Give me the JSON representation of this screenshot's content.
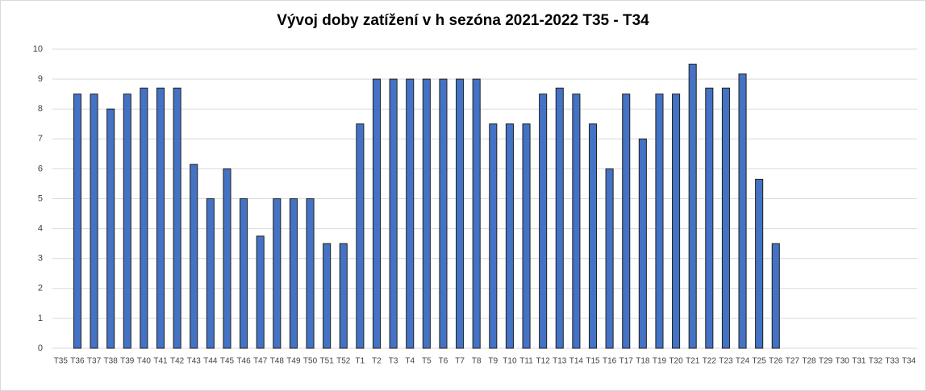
{
  "chart_data": {
    "type": "bar",
    "title": "Vývoj doby zatížení v h sezóna 2021-2022 T35 - T34",
    "categories": [
      "T35",
      "T36",
      "T37",
      "T38",
      "T39",
      "T40",
      "T41",
      "T42",
      "T43",
      "T44",
      "T45",
      "T46",
      "T47",
      "T48",
      "T49",
      "T50",
      "T51",
      "T52",
      "T1",
      "T2",
      "T3",
      "T4",
      "T5",
      "T6",
      "T7",
      "T8",
      "T9",
      "T10",
      "T11",
      "T12",
      "T13",
      "T14",
      "T15",
      "T16",
      "T17",
      "T18",
      "T19",
      "T20",
      "T21",
      "T22",
      "T23",
      "T24",
      "T25",
      "T26",
      "T27",
      "T28",
      "T29",
      "T30",
      "T31",
      "T32",
      "T33",
      "T34"
    ],
    "values": [
      null,
      8.5,
      8.5,
      8,
      8.5,
      8.7,
      8.7,
      8.7,
      6.15,
      5,
      6,
      5,
      3.75,
      5,
      5,
      5,
      3.5,
      3.5,
      7.5,
      9,
      9,
      9,
      9,
      9,
      9,
      9,
      7.5,
      7.5,
      7.5,
      8.5,
      8.7,
      8.5,
      7.5,
      6,
      8.5,
      7,
      8.5,
      8.5,
      9.5,
      8.7,
      8.7,
      9.17,
      5.65,
      3.5,
      null,
      null,
      null,
      null,
      null,
      null,
      null,
      null
    ],
    "color": "#4472c4",
    "ylim": [
      0,
      10
    ],
    "yticks": [
      0,
      1,
      2,
      3,
      4,
      5,
      6,
      7,
      8,
      9,
      10
    ],
    "grid": true
  }
}
